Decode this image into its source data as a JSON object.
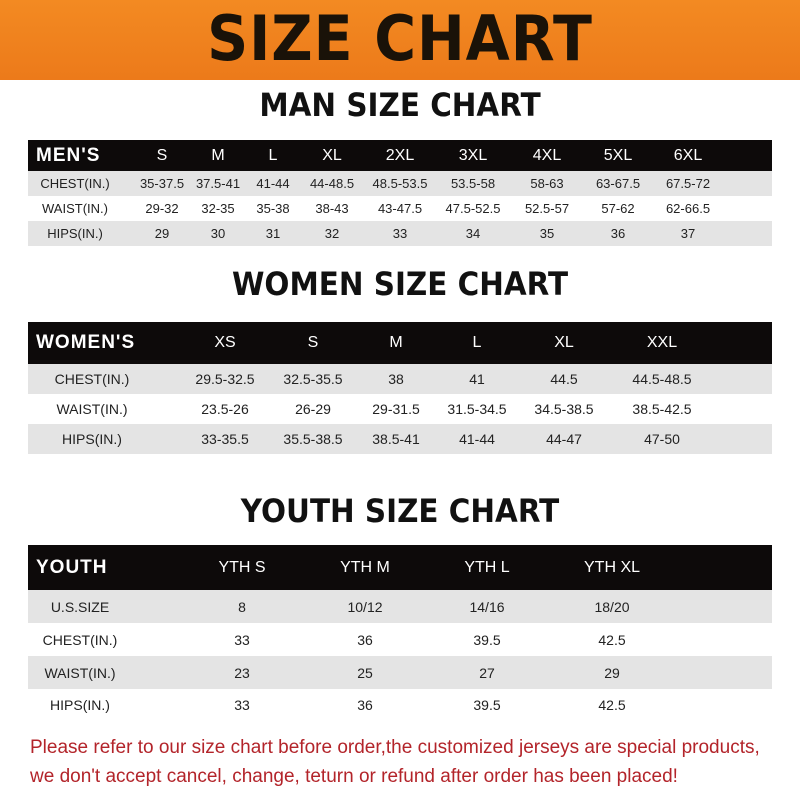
{
  "banner": {
    "title": "SIZE CHART",
    "color": "#ef8020"
  },
  "men": {
    "title": "MAN SIZE CHART",
    "headers": [
      "MEN'S",
      "S",
      "M",
      "L",
      "XL",
      "2XL",
      "3XL",
      "4XL",
      "5XL",
      "6XL"
    ],
    "rows": [
      [
        "CHEST(IN.)",
        "35-37.5",
        "37.5-41",
        "41-44",
        "44-48.5",
        "48.5-53.5",
        "53.5-58",
        "58-63",
        "63-67.5",
        "67.5-72"
      ],
      [
        "WAIST(IN.)",
        "29-32",
        "32-35",
        "35-38",
        "38-43",
        "43-47.5",
        "47.5-52.5",
        "52.5-57",
        "57-62",
        "62-66.5"
      ],
      [
        "HIPS(IN.)",
        "29",
        "30",
        "31",
        "32",
        "33",
        "34",
        "35",
        "36",
        "37"
      ]
    ]
  },
  "women": {
    "title": "WOMEN SIZE CHART",
    "headers": [
      "WOMEN'S",
      "XS",
      "S",
      "M",
      "L",
      "XL",
      "XXL"
    ],
    "rows": [
      [
        "CHEST(IN.)",
        "29.5-32.5",
        "32.5-35.5",
        "38",
        "41",
        "44.5",
        "44.5-48.5"
      ],
      [
        "WAIST(IN.)",
        "23.5-26",
        "26-29",
        "29-31.5",
        "31.5-34.5",
        "34.5-38.5",
        "38.5-42.5"
      ],
      [
        "HIPS(IN.)",
        "33-35.5",
        "35.5-38.5",
        "38.5-41",
        "41-44",
        "44-47",
        "47-50"
      ]
    ]
  },
  "youth": {
    "title": "YOUTH SIZE CHART",
    "headers": [
      "YOUTH",
      "YTH S",
      "YTH M",
      "YTH L",
      "YTH XL"
    ],
    "rows": [
      [
        "U.S.SIZE",
        "8",
        "10/12",
        "14/16",
        "18/20"
      ],
      [
        "CHEST(IN.)",
        "33",
        "36",
        "39.5",
        "42.5"
      ],
      [
        "WAIST(IN.)",
        "23",
        "25",
        "27",
        "29"
      ],
      [
        "HIPS(IN.)",
        "33",
        "36",
        "39.5",
        "42.5"
      ]
    ]
  },
  "note": {
    "line1": "Please refer to our size chart before order,the customized jerseys are special products,",
    "line2": "we don't accept cancel, change, teturn or refund after order has been placed!",
    "color": "#b3242a"
  }
}
